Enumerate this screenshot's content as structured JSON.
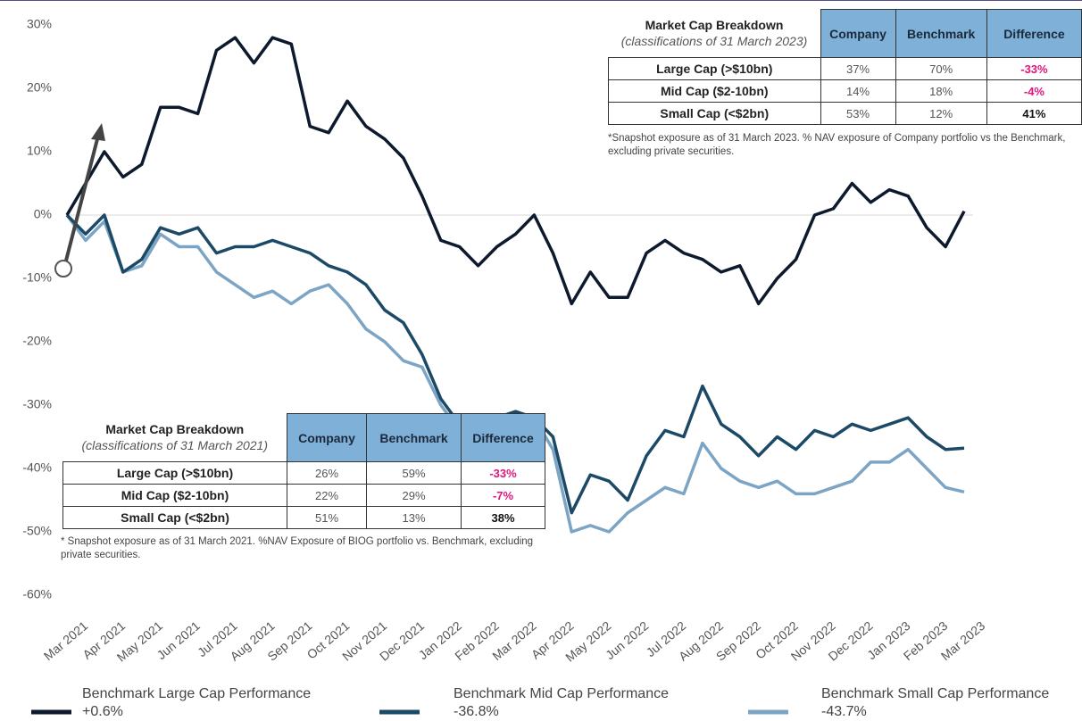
{
  "chart_data": {
    "type": "line",
    "categories": [
      "Mar 2021",
      null,
      "Apr 2021",
      null,
      "May 2021",
      null,
      "Jun 2021",
      null,
      "Jul 2021",
      null,
      "Aug 2021",
      null,
      "Sep 2021",
      null,
      "Oct 2021",
      null,
      "Nov 2021",
      null,
      "Dec 2021",
      null,
      "Jan 2022",
      null,
      "Feb 2022",
      null,
      "Mar 2022",
      null,
      "Apr 2022",
      null,
      "May 2022",
      null,
      "Jun 2022",
      null,
      "Jul 2022",
      null,
      "Aug 2022",
      null,
      "Sep 2022",
      null,
      "Oct 2022",
      null,
      "Nov 2022",
      null,
      "Dec 2022",
      null,
      "Jan 2023",
      null,
      "Feb 2023",
      null,
      "Mar 2023"
    ],
    "series": [
      {
        "name": "Benchmark Large Cap Performance",
        "legend_value": "+0.6%",
        "color": "#0d1a2d",
        "values": [
          0,
          5,
          10,
          6,
          8,
          17,
          17,
          16,
          26,
          28,
          24,
          28,
          27,
          14,
          13,
          18,
          14,
          12,
          9,
          3,
          -4,
          -5,
          -8,
          -5,
          -3,
          0,
          -6,
          -14,
          -9,
          -13,
          -13,
          -6,
          -4,
          -6,
          -7,
          -9,
          -8,
          -14,
          -10,
          -7,
          0,
          1,
          5,
          2,
          4,
          3,
          -2,
          -5,
          0.6
        ]
      },
      {
        "name": "Benchmark Mid Cap Performance",
        "legend_value": "-36.8%",
        "color": "#1c4a66",
        "values": [
          0,
          -3,
          0,
          -9,
          -7,
          -2,
          -3,
          -2,
          -6,
          -5,
          -5,
          -4,
          -5,
          -6,
          -8,
          -9,
          -11,
          -15,
          -17,
          -22,
          -29,
          -33,
          -32,
          -32,
          -31,
          -32,
          -35,
          -47,
          -41,
          -42,
          -45,
          -38,
          -34,
          -35,
          -27,
          -33,
          -35,
          -38,
          -35,
          -37,
          -34,
          -35,
          -33,
          -34,
          -33,
          -32,
          -35,
          -37,
          -36.8
        ]
      },
      {
        "name": "Benchmark Small Cap Performance",
        "legend_value": "-43.7%",
        "color": "#7ca4c5",
        "values": [
          0,
          -4,
          -1,
          -9,
          -8,
          -3,
          -5,
          -5,
          -9,
          -11,
          -13,
          -12,
          -14,
          -12,
          -11,
          -14,
          -18,
          -20,
          -23,
          -24,
          -30,
          -34,
          -35,
          -32,
          -31,
          -32,
          -37,
          -50,
          -49,
          -50,
          -47,
          -45,
          -43,
          -44,
          -36,
          -40,
          -42,
          -43,
          -42,
          -44,
          -44,
          -43,
          -42,
          -39,
          -39,
          -37,
          -40,
          -43,
          -43.7
        ]
      }
    ],
    "ylim": [
      -60,
      30
    ],
    "yticks": [
      {
        "value": 30,
        "label": "30%"
      },
      {
        "value": 20,
        "label": "20%"
      },
      {
        "value": 10,
        "label": "10%"
      },
      {
        "value": 0,
        "label": "0%"
      },
      {
        "value": -10,
        "label": "-10%"
      },
      {
        "value": -20,
        "label": "-20%"
      },
      {
        "value": -30,
        "label": "-30%"
      },
      {
        "value": -40,
        "label": "-40%"
      },
      {
        "value": -50,
        "label": "-50%"
      },
      {
        "value": -60,
        "label": "-60%"
      }
    ],
    "zero_line": true
  },
  "tables": [
    {
      "title": "Market Cap Breakdown",
      "subtitle": "(classifications of 31 March 2023)",
      "headers": [
        "Company",
        "Benchmark",
        "Difference"
      ],
      "rows": [
        [
          "Large Cap (>$10bn)",
          "37%",
          "70%",
          "-33%"
        ],
        [
          "Mid Cap ($2-10bn)",
          "14%",
          "18%",
          "-4%"
        ],
        [
          "Small Cap (<$2bn)",
          "53%",
          "12%",
          "41%"
        ]
      ],
      "note": "*Snapshot exposure as of 31 March 2023. % NAV exposure of Company portfolio vs the Benchmark, excluding private securities."
    },
    {
      "title": "Market Cap Breakdown",
      "subtitle": "(classifications of 31 March 2021)",
      "headers": [
        "Company",
        "Benchmark",
        "Difference"
      ],
      "rows": [
        [
          "Large Cap (>$10bn)",
          "26%",
          "59%",
          "-33%"
        ],
        [
          "Mid Cap ($2-10bn)",
          "22%",
          "29%",
          "-7%"
        ],
        [
          "Small Cap (<$2bn)",
          "51%",
          "13%",
          "38%"
        ]
      ],
      "note": "* Snapshot exposure as of 31 March 2021. %NAV Exposure of BIOG portfolio vs. Benchmark, excluding private securities."
    }
  ]
}
